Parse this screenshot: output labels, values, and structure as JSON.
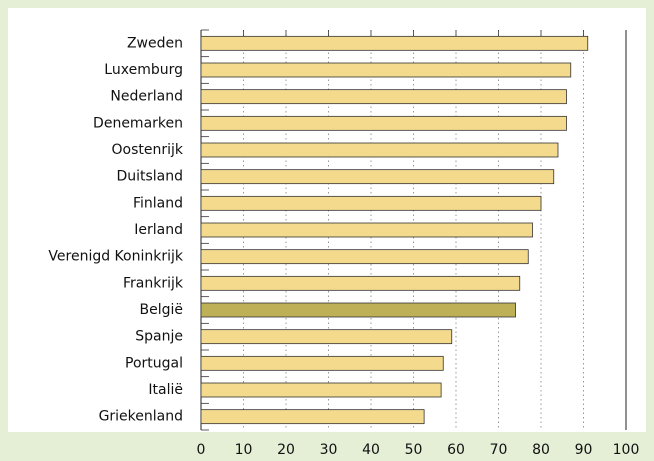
{
  "chart_data": {
    "type": "barh",
    "categories": [
      "Zweden",
      "Luxemburg",
      "Nederland",
      "Denemarken",
      "Oostenrijk",
      "Duitsland",
      "Finland",
      "Ierland",
      "Verenigd Koninkrijk",
      "Frankrijk",
      "België",
      "Spanje",
      "Portugal",
      "Italië",
      "Griekenland"
    ],
    "values": [
      91,
      87,
      86,
      86,
      84,
      83,
      80,
      78,
      77,
      75,
      74,
      59,
      57,
      56.5,
      52.5
    ],
    "colors": [
      "#f3da8c",
      "#f3da8c",
      "#f3da8c",
      "#f3da8c",
      "#f3da8c",
      "#f3da8c",
      "#f3da8c",
      "#f3da8c",
      "#f3da8c",
      "#f3da8c",
      "#bdb057",
      "#f3da8c",
      "#f3da8c",
      "#f3da8c",
      "#f3da8c"
    ],
    "xlim": [
      0,
      100
    ],
    "xticks": [
      0,
      10,
      20,
      30,
      40,
      50,
      60,
      70,
      80,
      90,
      100
    ],
    "grid": true
  }
}
